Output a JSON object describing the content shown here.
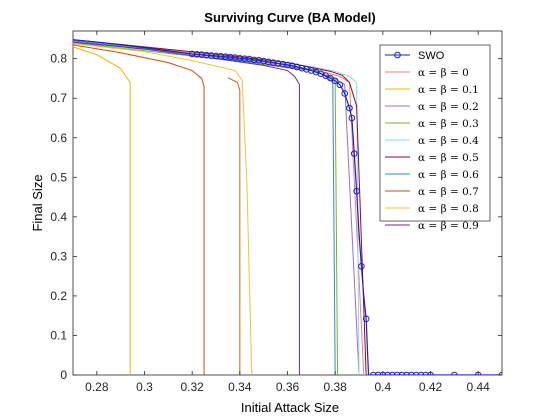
{
  "chart_data": {
    "type": "line",
    "title": "Surviving Curve (BA Model)",
    "xlabel": "Initial Attack Size",
    "ylabel": "Final Size",
    "xlim": [
      0.27,
      0.45
    ],
    "ylim": [
      0,
      0.87
    ],
    "xticks": [
      "0.28",
      "0.3",
      "0.32",
      "0.34",
      "0.36",
      "0.38",
      "0.4",
      "0.42",
      "0.44"
    ],
    "xtick_values": [
      0.28,
      0.3,
      0.32,
      0.34,
      0.36,
      0.38,
      0.4,
      0.42,
      0.44
    ],
    "yticks": [
      "0",
      "0.1",
      "0.2",
      "0.3",
      "0.4",
      "0.5",
      "0.6",
      "0.7",
      "0.8"
    ],
    "ytick_values": [
      0,
      0.1,
      0.2,
      0.3,
      0.4,
      0.5,
      0.6,
      0.7,
      0.8
    ],
    "grid": false,
    "legend_position": "top-right",
    "series": [
      {
        "name": "SWO",
        "color": "#1f1fbf",
        "marker": "circle",
        "x": [
          0.27,
          0.28,
          0.29,
          0.3,
          0.31,
          0.32,
          0.322,
          0.324,
          0.326,
          0.328,
          0.33,
          0.332,
          0.334,
          0.336,
          0.338,
          0.34,
          0.342,
          0.344,
          0.346,
          0.348,
          0.35,
          0.352,
          0.354,
          0.356,
          0.358,
          0.36,
          0.362,
          0.364,
          0.366,
          0.368,
          0.37,
          0.372,
          0.374,
          0.376,
          0.378,
          0.38,
          0.382,
          0.384,
          0.386,
          0.387,
          0.388,
          0.389,
          0.39,
          0.391,
          0.392,
          0.393,
          0.394,
          0.396,
          0.398,
          0.4,
          0.402,
          0.404,
          0.406,
          0.408,
          0.41,
          0.412,
          0.414,
          0.416,
          0.418,
          0.42,
          0.43,
          0.44,
          0.45
        ],
        "y": [
          0.848,
          0.842,
          0.835,
          0.828,
          0.82,
          0.812,
          0.811,
          0.81,
          0.809,
          0.808,
          0.807,
          0.806,
          0.805,
          0.804,
          0.803,
          0.801,
          0.8,
          0.799,
          0.797,
          0.796,
          0.794,
          0.792,
          0.79,
          0.788,
          0.786,
          0.784,
          0.782,
          0.779,
          0.776,
          0.773,
          0.77,
          0.766,
          0.762,
          0.757,
          0.751,
          0.744,
          0.734,
          0.712,
          0.675,
          0.65,
          0.56,
          0.465,
          0.36,
          0.275,
          0.2,
          0.142,
          0.0,
          0.0,
          0.0,
          0.0,
          0.0,
          0.0,
          0.0,
          0.0,
          0.0,
          0.0,
          0.0,
          0.0,
          0.0,
          0.0,
          0.0,
          0.0,
          0.0
        ],
        "marker_x": [
          0.32,
          0.322,
          0.324,
          0.326,
          0.328,
          0.33,
          0.332,
          0.334,
          0.336,
          0.338,
          0.34,
          0.342,
          0.344,
          0.346,
          0.348,
          0.35,
          0.352,
          0.354,
          0.356,
          0.358,
          0.36,
          0.362,
          0.364,
          0.366,
          0.368,
          0.37,
          0.372,
          0.374,
          0.376,
          0.378,
          0.38,
          0.382,
          0.384,
          0.386,
          0.387,
          0.388,
          0.389,
          0.391,
          0.393,
          0.396,
          0.398,
          0.4,
          0.402,
          0.404,
          0.406,
          0.408,
          0.41,
          0.412,
          0.414,
          0.416,
          0.418,
          0.42,
          0.43,
          0.44,
          0.45
        ],
        "marker_y": [
          0.812,
          0.811,
          0.81,
          0.809,
          0.808,
          0.807,
          0.806,
          0.805,
          0.804,
          0.803,
          0.801,
          0.8,
          0.799,
          0.797,
          0.796,
          0.794,
          0.792,
          0.79,
          0.788,
          0.786,
          0.784,
          0.782,
          0.779,
          0.776,
          0.773,
          0.77,
          0.766,
          0.762,
          0.757,
          0.751,
          0.744,
          0.734,
          0.712,
          0.675,
          0.65,
          0.56,
          0.465,
          0.275,
          0.142,
          0.0,
          0.0,
          0.0,
          0.0,
          0.0,
          0.0,
          0.0,
          0.0,
          0.0,
          0.0,
          0.0,
          0.0,
          0.0,
          0.0,
          0.0,
          0.0
        ]
      },
      {
        "name": "α = β = 0",
        "color": "#f08080",
        "x": [
          0.27,
          0.3,
          0.34,
          0.36,
          0.37,
          0.378,
          0.382,
          0.386,
          0.392,
          0.394
        ],
        "y": [
          0.845,
          0.828,
          0.8,
          0.783,
          0.772,
          0.762,
          0.755,
          0.74,
          0.0,
          0.0
        ]
      },
      {
        "name": "α = β = 0.1",
        "color": "#e8b800",
        "x": [
          0.27,
          0.28,
          0.29,
          0.294,
          0.294
        ],
        "y": [
          0.83,
          0.81,
          0.775,
          0.74,
          0.0
        ]
      },
      {
        "name": "α = β = 0.2",
        "color": "#9370db",
        "x": [
          0.27,
          0.3,
          0.32,
          0.34,
          0.36,
          0.37,
          0.378,
          0.384,
          0.39
        ],
        "y": [
          0.845,
          0.826,
          0.812,
          0.796,
          0.78,
          0.77,
          0.755,
          0.735,
          0.0
        ]
      },
      {
        "name": "α = β = 0.3",
        "color": "#7fae2a",
        "x": [
          0.27,
          0.3,
          0.33,
          0.35,
          0.37,
          0.378,
          0.38,
          0.381
        ],
        "y": [
          0.84,
          0.82,
          0.8,
          0.785,
          0.77,
          0.752,
          0.74,
          0.0
        ]
      },
      {
        "name": "α = β = 0.4",
        "color": "#8fd8f0",
        "x": [
          0.27,
          0.3,
          0.34,
          0.37,
          0.38,
          0.386,
          0.389,
          0.39
        ],
        "y": [
          0.845,
          0.826,
          0.8,
          0.78,
          0.768,
          0.755,
          0.74,
          0.0
        ]
      },
      {
        "name": "α = β = 0.5",
        "color": "#8b0a2a",
        "x": [
          0.27,
          0.3,
          0.34,
          0.36,
          0.37,
          0.378,
          0.383,
          0.386,
          0.389,
          0.393,
          0.395
        ],
        "y": [
          0.848,
          0.83,
          0.805,
          0.79,
          0.778,
          0.768,
          0.758,
          0.74,
          0.68,
          0.0,
          0.0
        ]
      },
      {
        "name": "α = β = 0.6",
        "color": "#2a8fbf",
        "x": [
          0.27,
          0.3,
          0.33,
          0.36,
          0.372,
          0.376,
          0.379,
          0.38
        ],
        "y": [
          0.845,
          0.825,
          0.805,
          0.785,
          0.77,
          0.755,
          0.74,
          0.0
        ]
      },
      {
        "name": "α = β = 0.7",
        "color": "#c8500a",
        "x": [
          0.27,
          0.29,
          0.31,
          0.32,
          0.324,
          0.325,
          0.325
        ],
        "y": [
          0.835,
          0.815,
          0.79,
          0.77,
          0.75,
          0.73,
          0.0
        ]
      },
      {
        "name": "α = β = 0.8",
        "color": "#f0c040",
        "x": [
          0.27,
          0.3,
          0.32,
          0.338,
          0.341,
          0.343,
          0.345
        ],
        "y": [
          0.838,
          0.818,
          0.795,
          0.77,
          0.745,
          0.48,
          0.0
        ]
      },
      {
        "name": "α = β = 0.9",
        "color": "#6a2c91",
        "x": [
          0.27,
          0.3,
          0.33,
          0.35,
          0.36,
          0.363,
          0.365,
          0.365
        ],
        "y": [
          0.842,
          0.824,
          0.8,
          0.783,
          0.77,
          0.755,
          0.735,
          0.0
        ]
      },
      {
        "name": "",
        "color": "#c86414",
        "x": [
          0.335,
          0.339,
          0.34,
          0.34
        ],
        "y": [
          0.752,
          0.74,
          0.72,
          0.0
        ]
      }
    ]
  }
}
